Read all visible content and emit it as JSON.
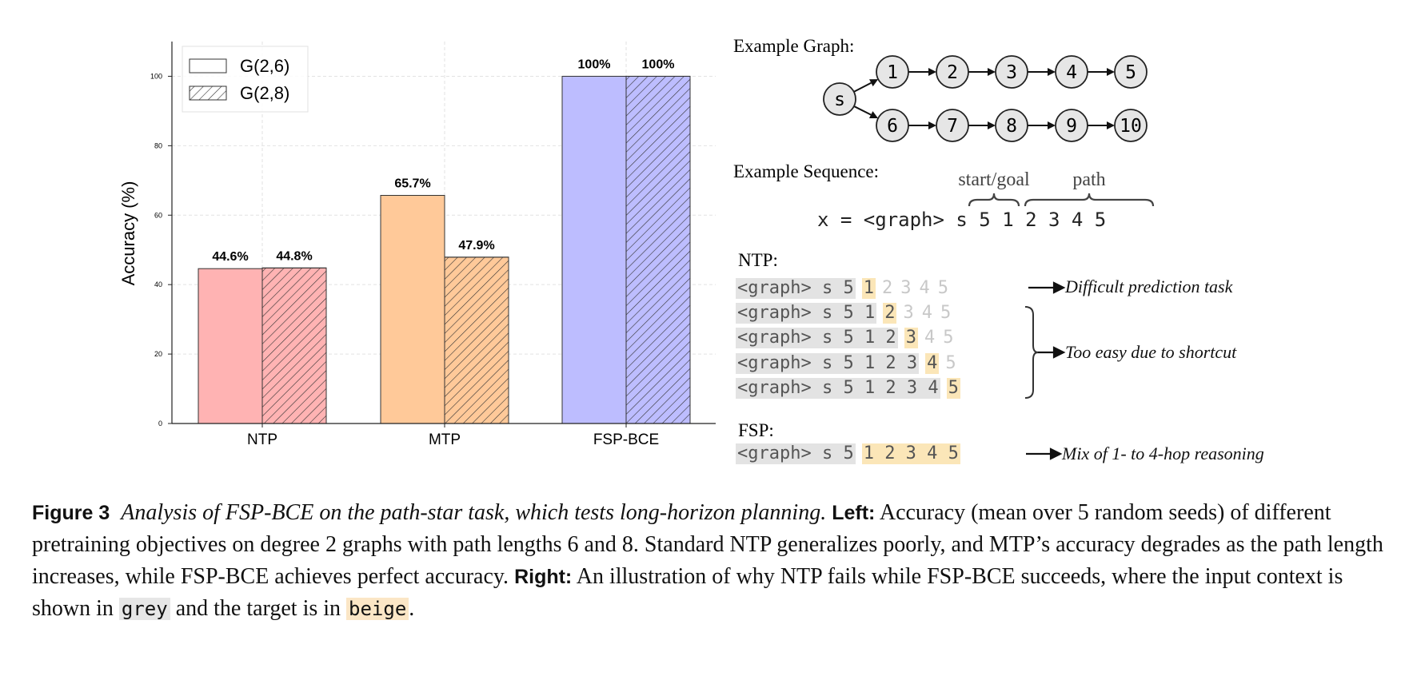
{
  "chart_data": {
    "type": "bar",
    "categories": [
      "NTP",
      "MTP",
      "FSP-BCE"
    ],
    "series": [
      {
        "name": "G(2,6)",
        "values": [
          44.6,
          65.7,
          100
        ],
        "labels": [
          "44.6%",
          "65.7%",
          "100%"
        ],
        "hatch": false
      },
      {
        "name": "G(2,8)",
        "values": [
          44.8,
          47.9,
          100
        ],
        "labels": [
          "44.8%",
          "47.9%",
          "100%"
        ],
        "hatch": true
      }
    ],
    "category_colors": [
      "#ffb3b3",
      "#ffc999",
      "#bdbdff"
    ],
    "ylabel": "Accuracy (%)",
    "xlabel": "",
    "ylim": [
      0,
      110
    ],
    "yticks": [
      "0",
      "20",
      "40",
      "60",
      "80",
      "100"
    ],
    "ytick_values": [
      0,
      20,
      40,
      60,
      80,
      100
    ],
    "grid": true,
    "legend_position": "top-left"
  },
  "right": {
    "graph_label": "Example Graph:",
    "nodes": {
      "s": "s",
      "r1": [
        "1",
        "2",
        "3",
        "4",
        "5"
      ],
      "r2": [
        "6",
        "7",
        "8",
        "9",
        "10"
      ]
    },
    "sequence_label": "Example Sequence:",
    "brace_start_goal": "start/goal",
    "brace_path": "path",
    "sequence": "x = <graph> s 5 1 2 3 4 5",
    "ntp_label": "NTP:",
    "fsp_label": "FSP:",
    "tokens": {
      "graph": "<graph>",
      "s": "s",
      "five": "5",
      "path": [
        "1",
        "2",
        "3",
        "4",
        "5"
      ]
    },
    "ann_difficult": "Difficult prediction task",
    "ann_easy": "Too easy due to shortcut",
    "ann_mix": "Mix of 1- to 4-hop reasoning"
  },
  "caption": {
    "fig": "Figure 3",
    "title": "Analysis of FSP-BCE on the path-star task, which tests long-horizon planning.",
    "left_label": "Left:",
    "left_text": "Accuracy (mean over 5 random seeds) of different pretraining objectives on degree 2 graphs with path lengths 6 and 8. Standard NTP generalizes poorly, and MTP’s accuracy degrades as the path length increases, while FSP-BCE achieves perfect accuracy.",
    "right_label": "Right:",
    "right_text": "An illustration of why NTP fails while FSP-BCE succeeds, where the input context is shown in",
    "grey_word": "grey",
    "mid_text": "and the target is in",
    "beige_word": "beige",
    "end": "."
  }
}
